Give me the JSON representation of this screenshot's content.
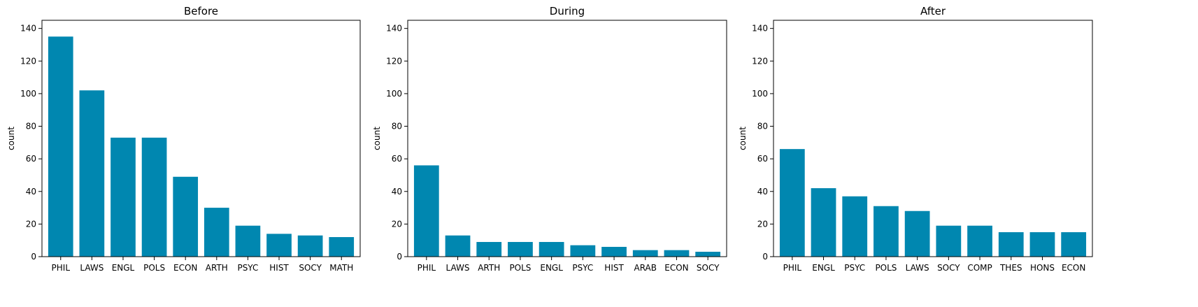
{
  "figure": {
    "bar_color": "#0087b0"
  },
  "chart_data": [
    {
      "type": "bar",
      "title": "Before",
      "xlabel": "",
      "ylabel": "count",
      "ylim": [
        0,
        145
      ],
      "yticks": [
        0,
        20,
        40,
        60,
        80,
        100,
        120,
        140
      ],
      "categories": [
        "PHIL",
        "LAWS",
        "ENGL",
        "POLS",
        "ECON",
        "ARTH",
        "PSYC",
        "HIST",
        "SOCY",
        "MATH"
      ],
      "values": [
        135,
        102,
        73,
        73,
        49,
        30,
        19,
        14,
        13,
        12
      ],
      "grid": false,
      "legend": "none"
    },
    {
      "type": "bar",
      "title": "During",
      "xlabel": "",
      "ylabel": "count",
      "ylim": [
        0,
        145
      ],
      "yticks": [
        0,
        20,
        40,
        60,
        80,
        100,
        120,
        140
      ],
      "categories": [
        "PHIL",
        "LAWS",
        "ARTH",
        "POLS",
        "ENGL",
        "PSYC",
        "HIST",
        "ARAB",
        "ECON",
        "SOCY"
      ],
      "values": [
        56,
        13,
        9,
        9,
        9,
        7,
        6,
        4,
        4,
        3
      ],
      "grid": false,
      "legend": "none"
    },
    {
      "type": "bar",
      "title": "After",
      "xlabel": "",
      "ylabel": "count",
      "ylim": [
        0,
        145
      ],
      "yticks": [
        0,
        20,
        40,
        60,
        80,
        100,
        120,
        140
      ],
      "categories": [
        "PHIL",
        "ENGL",
        "PSYC",
        "POLS",
        "LAWS",
        "SOCY",
        "COMP",
        "THES",
        "HONS",
        "ECON"
      ],
      "values": [
        66,
        42,
        37,
        31,
        28,
        19,
        19,
        15,
        15,
        15
      ],
      "grid": false,
      "legend": "none"
    }
  ]
}
